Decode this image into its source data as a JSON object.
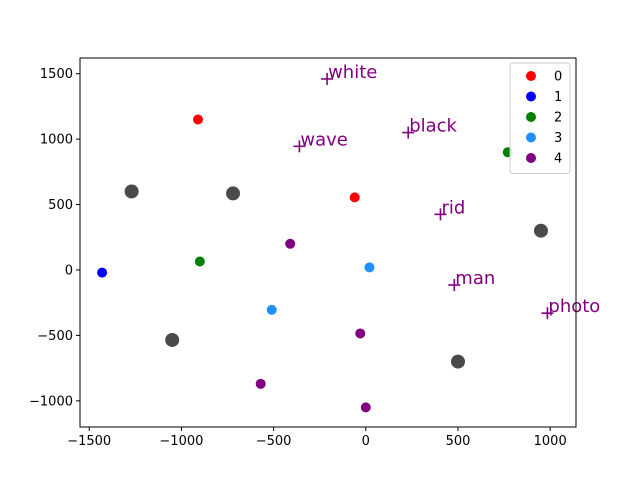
{
  "chart_data": {
    "type": "scatter",
    "title": "",
    "xlabel": "",
    "ylabel": "",
    "xlim": [
      -1550,
      1140
    ],
    "ylim": [
      -1200,
      1620
    ],
    "xticks": [
      -1500,
      -1000,
      -500,
      0,
      500,
      1000
    ],
    "yticks": [
      -1000,
      -500,
      0,
      500,
      1000,
      1500
    ],
    "xtick_labels": [
      "−1500",
      "−1000",
      "−500",
      "0",
      "500",
      "1000"
    ],
    "ytick_labels": [
      "−1000",
      "−500",
      "0",
      "500",
      "1000",
      "1500"
    ],
    "grid": false,
    "legend_position": "top-right",
    "series": [
      {
        "name": "0",
        "color": "#ff0000",
        "points": [
          [
            -910,
            1150
          ],
          [
            -60,
            555
          ]
        ]
      },
      {
        "name": "1",
        "color": "#0000ff",
        "points": [
          [
            -1430,
            -20
          ]
        ]
      },
      {
        "name": "2",
        "color": "#008000",
        "points": [
          [
            -900,
            65
          ],
          [
            770,
            900
          ]
        ]
      },
      {
        "name": "3",
        "color": "#1e90ff",
        "points": [
          [
            -510,
            -305
          ],
          [
            20,
            20
          ]
        ]
      },
      {
        "name": "4",
        "color": "#800080",
        "points": [
          [
            -410,
            200
          ],
          [
            -30,
            -485
          ],
          [
            -570,
            -870
          ],
          [
            0,
            -1050
          ]
        ]
      }
    ],
    "centroids": {
      "color": "#404040",
      "points": [
        [
          -1270,
          600
        ],
        [
          -720,
          585
        ],
        [
          -1050,
          -535
        ],
        [
          500,
          -700
        ],
        [
          950,
          300
        ]
      ]
    },
    "words": {
      "color": "#800080",
      "items": [
        {
          "text": "white",
          "x": -210,
          "y": 1460
        },
        {
          "text": "black",
          "x": 230,
          "y": 1050
        },
        {
          "text": "wave",
          "x": -360,
          "y": 945
        },
        {
          "text": "rid",
          "x": 405,
          "y": 425
        },
        {
          "text": "man",
          "x": 480,
          "y": -115
        },
        {
          "text": "photo",
          "x": 985,
          "y": -330
        }
      ]
    }
  }
}
